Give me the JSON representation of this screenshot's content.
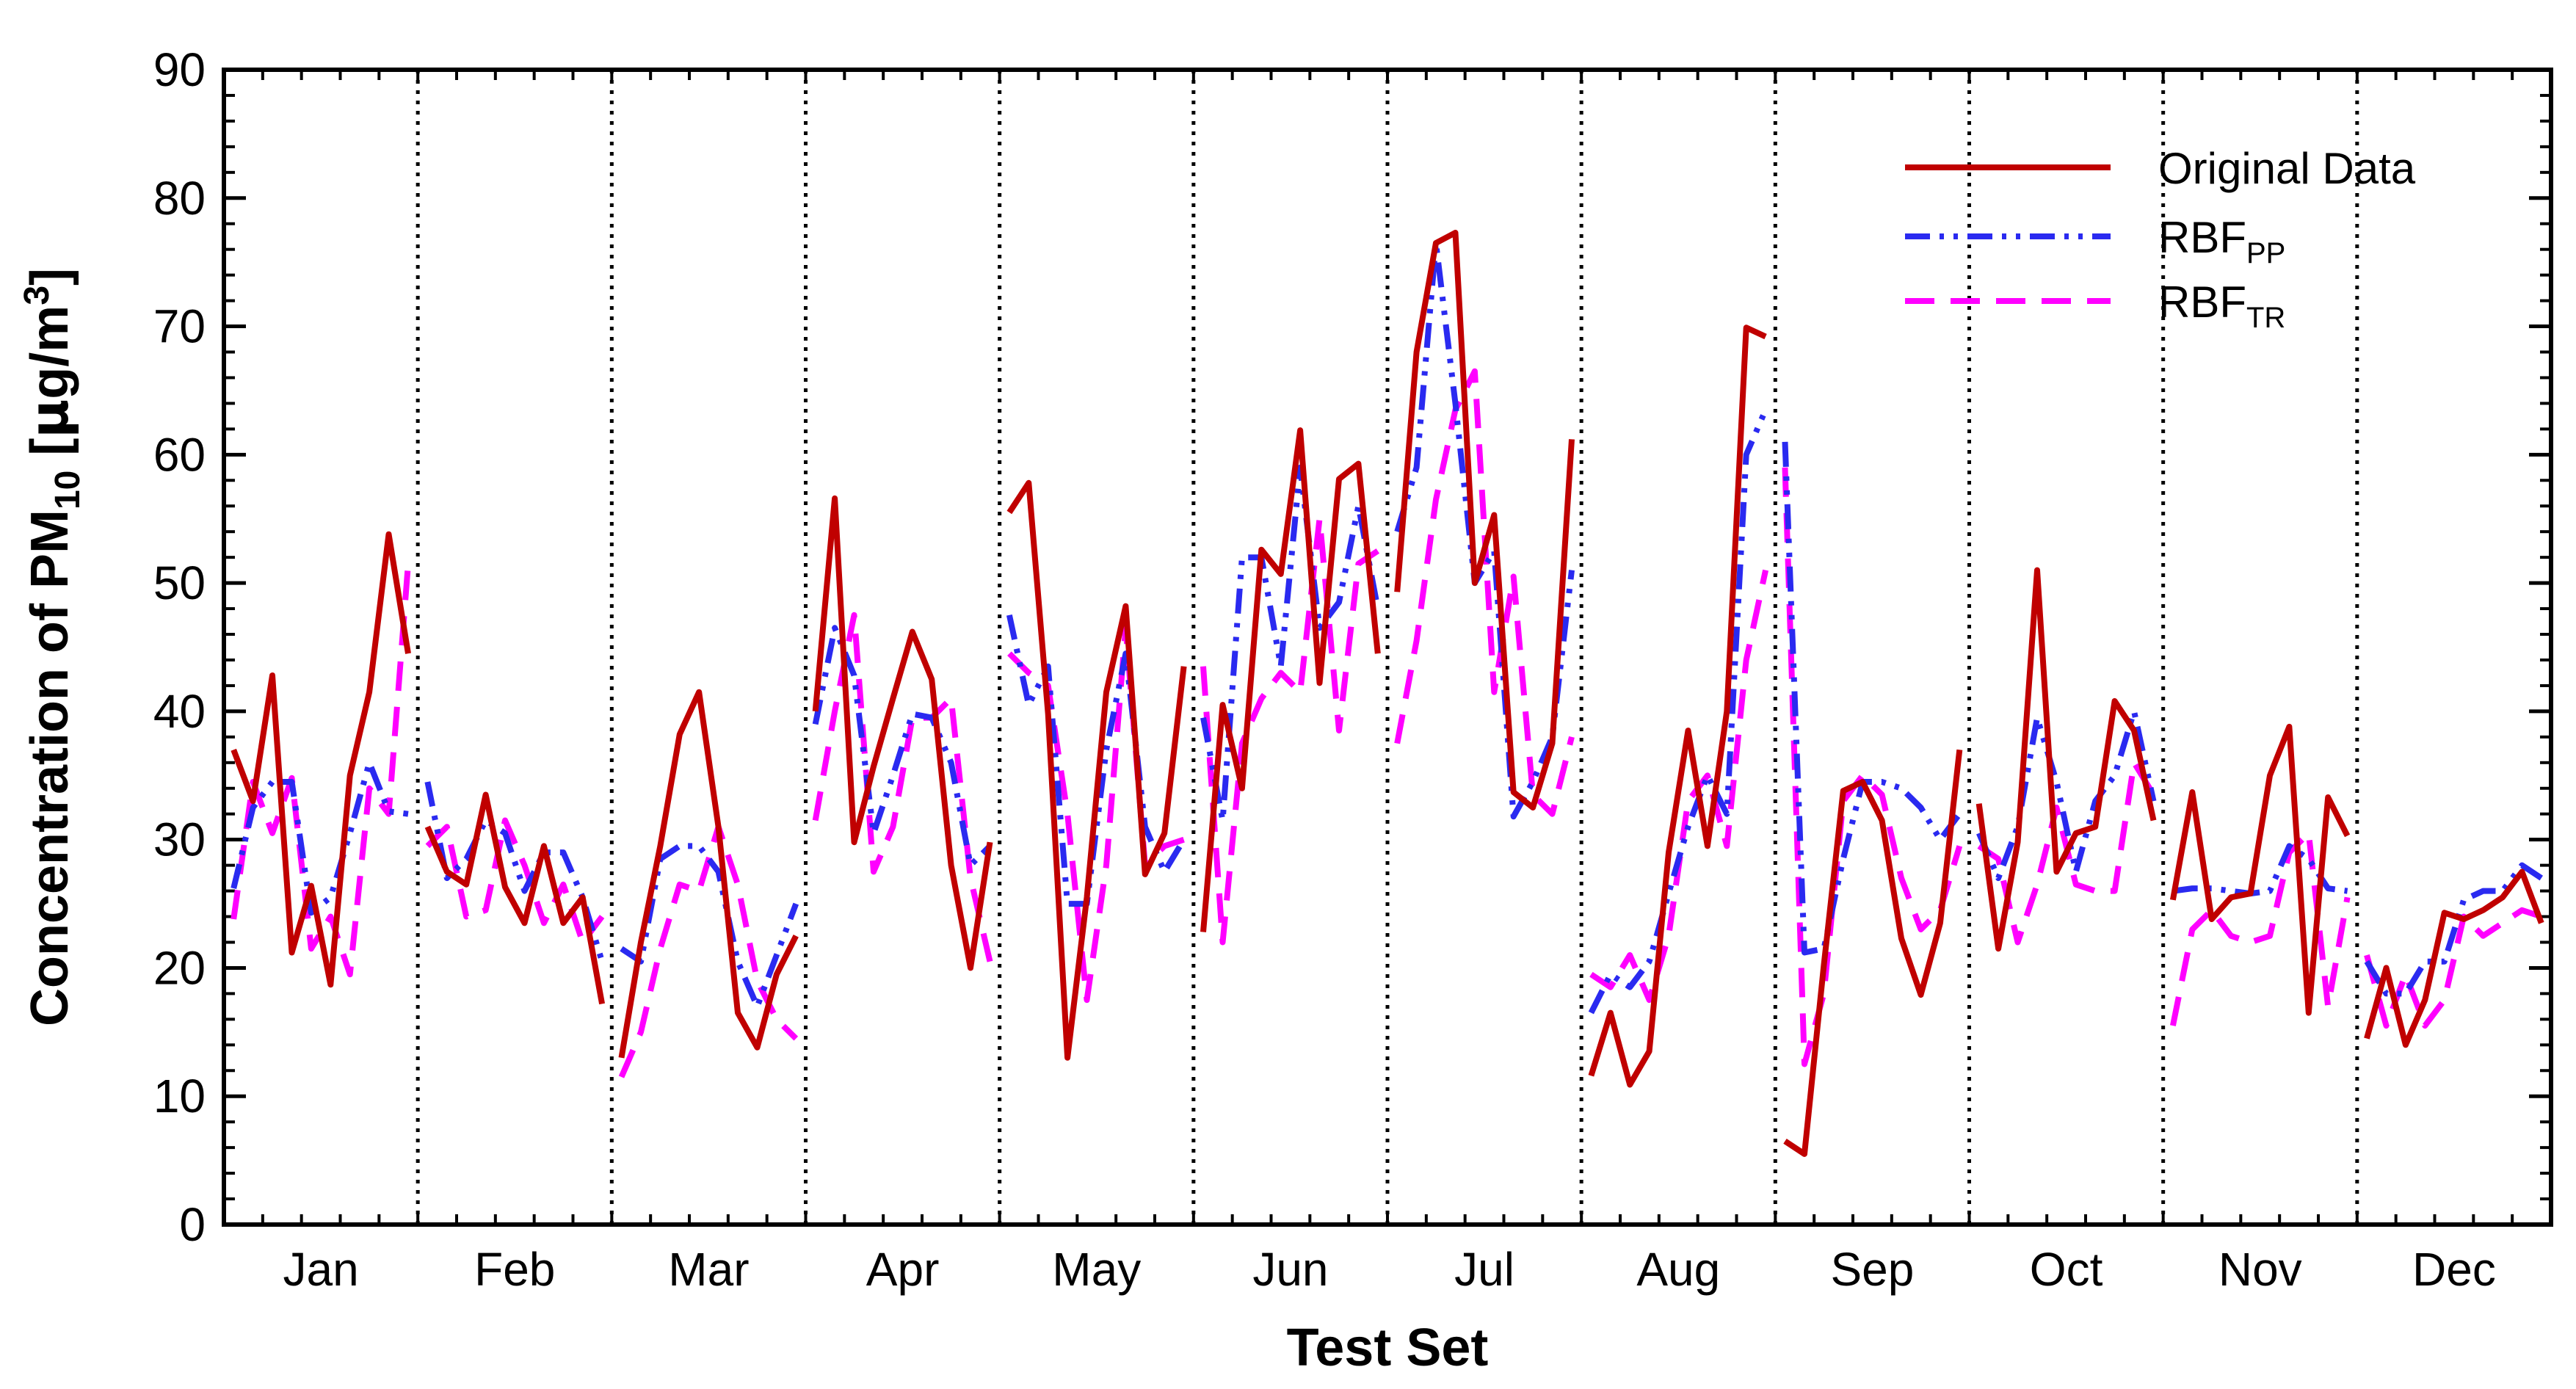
{
  "chart_data": {
    "type": "line",
    "title": "",
    "xlabel": "Test Set",
    "ylabel_main": "Concentration of PM",
    "ylabel_sub": "10",
    "ylabel_unit_open": " [",
    "ylabel_mu": "μ",
    "ylabel_unit": "g/m",
    "ylabel_sup": "3",
    "ylabel_close": "]",
    "ylim": [
      0,
      90
    ],
    "yticks": [
      0,
      10,
      20,
      30,
      40,
      50,
      60,
      70,
      80,
      90
    ],
    "months": [
      "Jan",
      "Feb",
      "Mar",
      "Apr",
      "May",
      "Jun",
      "Jul",
      "Aug",
      "Sep",
      "Oct",
      "Nov",
      "Dec"
    ],
    "days_per_month": 10,
    "legend_position": "top-right",
    "series": [
      {
        "name": "Original Data",
        "name_sub": "",
        "color": "#c00000",
        "style": "solid",
        "values": [
          [
            37,
            33,
            42.8,
            21.2,
            26.4,
            18.7,
            35,
            41.5,
            53.8,
            44.5
          ],
          [
            31,
            27.5,
            26.5,
            33.5,
            26.3,
            23.5,
            29.5,
            23.5,
            25.5,
            17.2
          ],
          [
            13,
            22,
            29.5,
            38.2,
            41.5,
            31,
            16.5,
            13.8,
            19.5,
            22.5
          ],
          [
            40,
            56.6,
            29.8,
            35.7,
            41,
            46.2,
            42.5,
            28,
            20,
            29.8
          ],
          [
            55.5,
            57.8,
            39.8,
            13,
            25.5,
            41.5,
            48.2,
            27.3,
            30.5,
            43.5
          ],
          [
            22.8,
            40.5,
            34,
            52.6,
            50.7,
            61.9,
            42.2,
            58.1,
            59.3,
            44.5
          ],
          [
            49.3,
            68,
            76.5,
            77.3,
            50,
            55.3,
            33.7,
            32.5,
            37.5,
            61.2
          ],
          [
            11.6,
            16.5,
            10.9,
            13.5,
            29,
            38.5,
            29.5,
            40,
            69.9,
            69.2
          ],
          [
            6.5,
            5.5,
            20.2,
            33.8,
            34.5,
            31.5,
            22.3,
            17.9,
            23.5,
            37
          ],
          [
            32.8,
            21.5,
            29.8,
            51,
            27.5,
            30.5,
            31,
            40.8,
            38.5,
            31.5
          ],
          [
            25.3,
            33.7,
            23.8,
            25.5,
            25.8,
            35,
            38.8,
            16.5,
            33.3,
            30.3
          ],
          [
            14.5,
            20,
            14,
            17.5,
            24.3,
            23.8,
            24.5,
            25.5,
            27.5,
            23.5
          ]
        ]
      },
      {
        "name": "RBF",
        "name_sub": "PP",
        "color": "#2a2af0",
        "style": "dashdotdot",
        "values": [
          [
            26.2,
            32.5,
            34.5,
            34.5,
            24.3,
            25.5,
            30.5,
            36,
            32.2,
            32
          ],
          [
            34.5,
            27,
            28.5,
            31.5,
            30.5,
            26,
            29,
            29,
            25.5,
            20.5
          ],
          [
            21.5,
            20.5,
            28.5,
            29.5,
            29.5,
            27.5,
            20.5,
            17,
            21,
            25
          ],
          [
            39,
            46.5,
            42.8,
            30.5,
            35,
            39.8,
            39.5,
            36,
            28,
            29.5
          ],
          [
            47.5,
            40.5,
            43.5,
            25,
            25,
            37,
            44.5,
            31,
            27.5,
            30
          ],
          [
            39.5,
            31.5,
            52,
            52,
            43.5,
            59,
            46.5,
            48.5,
            56,
            48
          ],
          [
            54,
            59,
            76.5,
            64,
            50,
            52.5,
            31.8,
            34.5,
            38,
            51
          ],
          [
            16.5,
            19.5,
            18.5,
            20.5,
            25.8,
            31,
            35,
            32,
            60,
            63.5
          ],
          [
            61,
            21.2,
            21.5,
            28.5,
            34.5,
            34.5,
            34,
            32.5,
            30,
            32
          ],
          [
            30.5,
            27,
            31,
            39.5,
            34.5,
            27.5,
            33,
            35,
            40,
            33
          ],
          [
            26,
            26.2,
            26.2,
            26,
            25.8,
            26,
            29.5,
            28.5,
            26.2,
            26
          ],
          [
            20.5,
            18,
            18,
            20.5,
            20.5,
            25.3,
            26,
            26,
            28,
            27
          ]
        ]
      },
      {
        "name": "RBF",
        "name_sub": "TR",
        "color": "#ff00ff",
        "style": "dashed",
        "values": [
          [
            23.8,
            34.5,
            30.5,
            34.8,
            21.5,
            24,
            19.5,
            34,
            32,
            51.5
          ],
          [
            29.5,
            31,
            24,
            24.5,
            31.5,
            28,
            23.5,
            26.5,
            22,
            24
          ],
          [
            11.5,
            15,
            21.5,
            26.5,
            26,
            31,
            26.5,
            19,
            16,
            14.5
          ],
          [
            31.5,
            40,
            47.5,
            27.5,
            31,
            39.5,
            39.5,
            41,
            27,
            20.5
          ],
          [
            44.5,
            43,
            42,
            32,
            17.5,
            28,
            46.5,
            28,
            29.5,
            30
          ],
          [
            43.5,
            22,
            37.5,
            41,
            43,
            41.5,
            55,
            38.5,
            51.5,
            52.5
          ],
          [
            37.5,
            45.5,
            56.5,
            63.5,
            66.5,
            41.5,
            50.5,
            33.5,
            32,
            38
          ],
          [
            19.5,
            18.5,
            21,
            17.5,
            22.5,
            33,
            35,
            29.5,
            44,
            51
          ],
          [
            59,
            12.5,
            18,
            33,
            35,
            33.5,
            27,
            23,
            24.5,
            29.5
          ],
          [
            29.5,
            28.5,
            22,
            26.5,
            32.5,
            26.5,
            26,
            26,
            36,
            33.5
          ],
          [
            15.5,
            23,
            24.5,
            22.5,
            22,
            22.5,
            29,
            30.5,
            17,
            25.5
          ],
          [
            21,
            15.5,
            19.5,
            15.5,
            17.5,
            24,
            22.5,
            23.5,
            24.5,
            24
          ]
        ]
      }
    ]
  }
}
